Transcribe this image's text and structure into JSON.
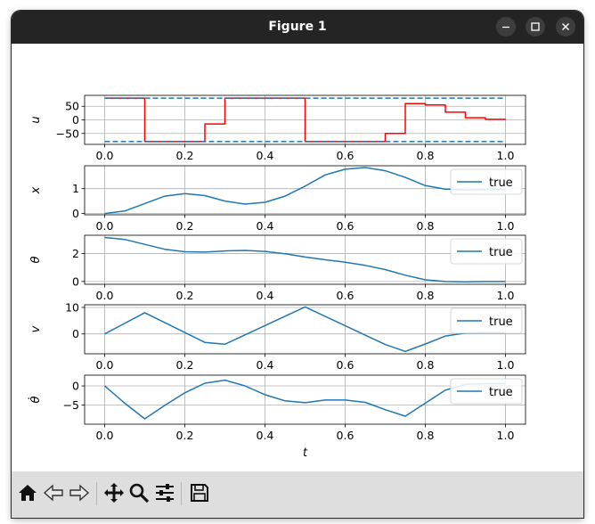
{
  "window": {
    "title": "Figure 1",
    "minimize_icon": "minimize-icon",
    "maximize_icon": "maximize-icon",
    "close_icon": "close-icon"
  },
  "toolbar": {
    "buttons": [
      {
        "name": "home-button",
        "icon": "home-icon"
      },
      {
        "name": "back-button",
        "icon": "back-arrow-icon"
      },
      {
        "name": "forward-button",
        "icon": "forward-arrow-icon"
      },
      {
        "name": "pan-button",
        "icon": "move-icon"
      },
      {
        "name": "zoom-button",
        "icon": "magnifier-icon"
      },
      {
        "name": "configure-subplots-button",
        "icon": "sliders-icon"
      },
      {
        "name": "save-button",
        "icon": "save-icon"
      }
    ]
  },
  "chart_data": [
    {
      "type": "line",
      "ylabel": "u",
      "xlim": [
        -0.05,
        1.05
      ],
      "ylim": [
        -90,
        90
      ],
      "yticks": [
        50,
        0,
        -50
      ],
      "ytick_labels": [
        "50",
        "0",
        "−50"
      ],
      "xticks": [
        0.0,
        0.2,
        0.4,
        0.6,
        0.8,
        1.0
      ],
      "xtick_labels": [
        "0.0",
        "0.2",
        "0.4",
        "0.6",
        "0.8",
        "1.0"
      ],
      "grid": true,
      "series": [
        {
          "color": "#ff0000",
          "step": true,
          "x": [
            0.0,
            0.1,
            0.25,
            0.3,
            0.5,
            0.7,
            0.75,
            0.8,
            0.85,
            0.9,
            0.95,
            1.0
          ],
          "values": [
            80,
            -80,
            -15,
            80,
            -80,
            -50,
            60,
            55,
            28,
            8,
            2,
            0
          ]
        },
        {
          "color": "#1f77b4",
          "dashed": true,
          "x": [
            0.0,
            1.0
          ],
          "values": [
            80,
            80
          ]
        },
        {
          "color": "#1f77b4",
          "dashed": true,
          "x": [
            0.0,
            1.0
          ],
          "values": [
            -80,
            -80
          ]
        }
      ]
    },
    {
      "type": "line",
      "ylabel": "x",
      "xlim": [
        -0.05,
        1.05
      ],
      "ylim": [
        -0.05,
        1.92
      ],
      "yticks": [
        1,
        0
      ],
      "ytick_labels": [
        "1",
        "0"
      ],
      "xticks": [
        0.0,
        0.2,
        0.4,
        0.6,
        0.8,
        1.0
      ],
      "xtick_labels": [
        "0.0",
        "0.2",
        "0.4",
        "0.6",
        "0.8",
        "1.0"
      ],
      "grid": true,
      "legend": "top-right",
      "series": [
        {
          "name": "true",
          "color": "#1f77b4",
          "x": [
            0.0,
            0.05,
            0.1,
            0.15,
            0.2,
            0.25,
            0.3,
            0.35,
            0.4,
            0.45,
            0.5,
            0.55,
            0.6,
            0.65,
            0.7,
            0.75,
            0.8,
            0.85,
            0.9,
            0.95,
            1.0
          ],
          "values": [
            0.0,
            0.1,
            0.4,
            0.7,
            0.8,
            0.72,
            0.5,
            0.38,
            0.45,
            0.7,
            1.1,
            1.55,
            1.78,
            1.85,
            1.72,
            1.45,
            1.12,
            0.98,
            0.95,
            0.96,
            0.97
          ]
        }
      ]
    },
    {
      "type": "line",
      "ylabel": "θ",
      "xlim": [
        -0.05,
        1.05
      ],
      "ylim": [
        -0.2,
        3.3
      ],
      "yticks": [
        2,
        0
      ],
      "ytick_labels": [
        "2",
        "0"
      ],
      "xticks": [
        0.0,
        0.2,
        0.4,
        0.6,
        0.8,
        1.0
      ],
      "xtick_labels": [
        "0.0",
        "0.2",
        "0.4",
        "0.6",
        "0.8",
        "1.0"
      ],
      "grid": true,
      "legend": "top-right",
      "series": [
        {
          "name": "true",
          "color": "#1f77b4",
          "x": [
            0.0,
            0.05,
            0.1,
            0.15,
            0.2,
            0.25,
            0.3,
            0.35,
            0.4,
            0.45,
            0.5,
            0.55,
            0.6,
            0.65,
            0.7,
            0.75,
            0.8,
            0.85,
            0.9,
            0.95,
            1.0
          ],
          "values": [
            3.14,
            3.0,
            2.65,
            2.3,
            2.12,
            2.1,
            2.18,
            2.22,
            2.15,
            1.98,
            1.75,
            1.55,
            1.38,
            1.15,
            0.85,
            0.45,
            0.12,
            0.0,
            -0.03,
            0.0,
            0.0
          ]
        }
      ]
    },
    {
      "type": "line",
      "ylabel": "v",
      "xlim": [
        -0.05,
        1.05
      ],
      "ylim": [
        -7.5,
        11
      ],
      "yticks": [
        10,
        0
      ],
      "ytick_labels": [
        "10",
        "0"
      ],
      "xticks": [
        0.0,
        0.2,
        0.4,
        0.6,
        0.8,
        1.0
      ],
      "xtick_labels": [
        "0.0",
        "0.2",
        "0.4",
        "0.6",
        "0.8",
        "1.0"
      ],
      "grid": true,
      "legend": "top-right",
      "series": [
        {
          "name": "true",
          "color": "#1f77b4",
          "x": [
            0.0,
            0.1,
            0.25,
            0.3,
            0.5,
            0.7,
            0.75,
            0.8,
            0.85,
            0.9,
            0.95,
            1.0
          ],
          "values": [
            0.0,
            8.0,
            -3.2,
            -3.9,
            10.2,
            -4.0,
            -6.6,
            -3.8,
            -0.8,
            0.3,
            0.4,
            0.4
          ]
        }
      ]
    },
    {
      "type": "line",
      "ylabel": "θ̇",
      "xlim": [
        -0.05,
        1.05
      ],
      "ylim": [
        -10,
        2.8
      ],
      "yticks": [
        0,
        -5
      ],
      "ytick_labels": [
        "0",
        "−5"
      ],
      "xticks": [
        0.0,
        0.2,
        0.4,
        0.6,
        0.8,
        1.0
      ],
      "xtick_labels": [
        "0.0",
        "0.2",
        "0.4",
        "0.6",
        "0.8",
        "1.0"
      ],
      "xlabel": "t",
      "grid": true,
      "legend": "top-right",
      "series": [
        {
          "name": "true",
          "color": "#1f77b4",
          "x": [
            0.0,
            0.05,
            0.1,
            0.15,
            0.2,
            0.25,
            0.3,
            0.35,
            0.4,
            0.45,
            0.5,
            0.55,
            0.6,
            0.65,
            0.7,
            0.75,
            0.8,
            0.85,
            0.9,
            0.95,
            1.0
          ],
          "values": [
            0.0,
            -4.5,
            -8.6,
            -5.1,
            -1.8,
            0.7,
            1.5,
            0.0,
            -2.3,
            -3.9,
            -4.4,
            -3.7,
            -3.7,
            -4.3,
            -6.2,
            -7.9,
            -4.5,
            -1.1,
            0.4,
            0.6,
            0.6
          ]
        }
      ]
    }
  ]
}
